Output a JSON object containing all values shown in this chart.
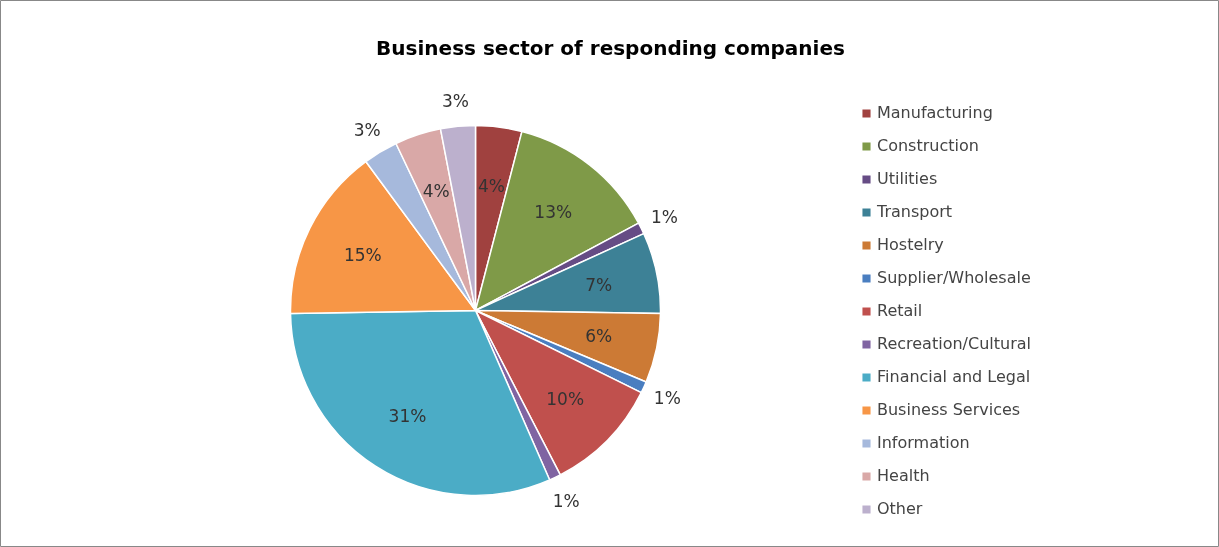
{
  "chart_data": {
    "type": "pie",
    "title": "Business sector of responding companies",
    "categories": [
      "Manufacturing",
      "Construction",
      "Utilities",
      "Transport",
      "Hostelry",
      "Supplier/Wholesale",
      "Retail",
      "Recreation/Cultural",
      "Financial and Legal",
      "Business Services",
      "Information",
      "Health",
      "Other"
    ],
    "values": [
      4,
      13,
      1,
      7,
      6,
      1,
      10,
      1,
      31,
      15,
      3,
      4,
      3
    ],
    "colors": [
      "#a0413f",
      "#7f9a48",
      "#664c85",
      "#3d8196",
      "#cc7a35",
      "#4a7ec0",
      "#c0504d",
      "#8064a2",
      "#4bacc6",
      "#f79646",
      "#a6b9dc",
      "#d9a8a7",
      "#bcb0cd"
    ],
    "value_labels": [
      "4%",
      "13%",
      "1%",
      "7%",
      "6%",
      "1%",
      "10%",
      "1%",
      "31%",
      "15%",
      "3%",
      "4%",
      "3%"
    ],
    "legend": "right"
  }
}
